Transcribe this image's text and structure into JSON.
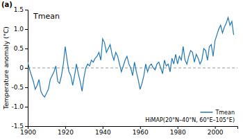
{
  "chart_data": {
    "type": "line",
    "title": "Tmean",
    "ylabel": "Temperature anomaly (°C)",
    "annotations": [
      "(a)",
      "HiMAP(20°N–40°N, 60°E–105°E)"
    ],
    "x": [
      1900,
      1901,
      1902,
      1903,
      1904,
      1905,
      1906,
      1907,
      1908,
      1909,
      1910,
      1911,
      1912,
      1913,
      1914,
      1915,
      1916,
      1917,
      1918,
      1919,
      1920,
      1921,
      1922,
      1923,
      1924,
      1925,
      1926,
      1927,
      1928,
      1929,
      1930,
      1931,
      1932,
      1933,
      1934,
      1935,
      1936,
      1937,
      1938,
      1939,
      1940,
      1941,
      1942,
      1943,
      1944,
      1945,
      1946,
      1947,
      1948,
      1949,
      1950,
      1951,
      1952,
      1953,
      1954,
      1955,
      1956,
      1957,
      1958,
      1959,
      1960,
      1961,
      1962,
      1963,
      1964,
      1965,
      1966,
      1967,
      1968,
      1969,
      1970,
      1971,
      1972,
      1973,
      1974,
      1975,
      1976,
      1977,
      1978,
      1979,
      1980,
      1981,
      1982,
      1983,
      1984,
      1985,
      1986,
      1987,
      1988,
      1989,
      1990,
      1991,
      1992,
      1993,
      1994,
      1995,
      1996,
      1997,
      1998,
      1999,
      2000,
      2001,
      2002,
      2003,
      2004,
      2005,
      2006,
      2007,
      2008,
      2009,
      2010
    ],
    "series": [
      {
        "name": "Tmean",
        "values": [
          0.15,
          -0.05,
          -0.2,
          -0.35,
          -0.55,
          -0.45,
          -0.3,
          -0.6,
          -0.7,
          -0.75,
          -0.65,
          -0.55,
          -0.3,
          -0.2,
          -0.1,
          0.05,
          -0.35,
          -0.4,
          -0.2,
          0.1,
          0.55,
          0.2,
          -0.1,
          -0.2,
          -0.45,
          -0.2,
          0.1,
          -0.15,
          -0.35,
          -0.6,
          -0.25,
          0.0,
          0.1,
          0.05,
          0.2,
          0.15,
          0.25,
          0.3,
          0.4,
          0.2,
          0.75,
          0.65,
          0.4,
          0.5,
          0.6,
          0.35,
          0.2,
          0.4,
          0.3,
          0.1,
          -0.1,
          0.05,
          0.2,
          0.3,
          0.1,
          0.0,
          -0.2,
          0.15,
          -0.1,
          -0.3,
          -0.55,
          -0.4,
          -0.2,
          0.1,
          -0.1,
          0.05,
          0.1,
          0.0,
          -0.05,
          0.1,
          0.15,
          0.0,
          -0.15,
          0.2,
          0.05,
          0.1,
          -0.1,
          0.25,
          0.1,
          0.35,
          0.1,
          0.3,
          0.2,
          0.55,
          0.2,
          0.1,
          0.3,
          0.45,
          0.4,
          0.15,
          0.35,
          0.25,
          0.1,
          0.2,
          0.5,
          0.45,
          0.2,
          0.55,
          0.6,
          0.3,
          0.7,
          0.85,
          1.0,
          1.1,
          0.9,
          1.05,
          1.15,
          1.3,
          1.1,
          1.2,
          0.85
        ]
      }
    ],
    "hlines": [
      {
        "value": 0,
        "line_style": "dashed"
      }
    ],
    "xlim": [
      1900,
      2012
    ],
    "ylim": [
      -1.5,
      1.5
    ],
    "xticks": [
      1900,
      1920,
      1940,
      1960,
      1980,
      2000
    ],
    "yticks": [
      -1.5,
      {
        "value": -1.0,
        "label": "-1.0"
      },
      -0.5,
      0,
      0.5,
      {
        "value": 1.0,
        "label": "1.0"
      },
      1.5
    ],
    "grid": false,
    "legend": "lower right"
  }
}
